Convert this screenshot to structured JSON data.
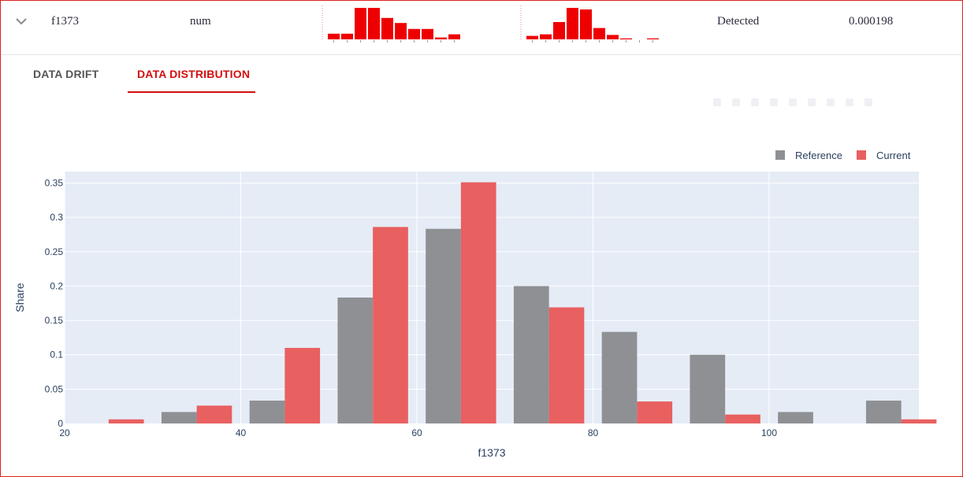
{
  "row": {
    "feature": "f1373",
    "type": "num",
    "status": "Detected",
    "pvalue": "0.000198",
    "ref_spark": [
      0.18,
      0.18,
      1.0,
      1.0,
      0.68,
      0.52,
      0.33,
      0.33,
      0.06,
      0.16
    ],
    "cur_spark": [
      0.11,
      0.16,
      0.55,
      1.0,
      0.95,
      0.36,
      0.14,
      0.03,
      0.0,
      0.03
    ],
    "spark_color": "#ee0000"
  },
  "tabs": [
    {
      "label": "DATA DRIFT",
      "active": false
    },
    {
      "label": "DATA DISTRIBUTION",
      "active": true
    }
  ],
  "chart_data": {
    "type": "bar",
    "xlabel": "f1373",
    "ylabel": "Share",
    "xlim": [
      20,
      117
    ],
    "ylim": [
      0,
      0.35
    ],
    "xticks": [
      20,
      40,
      60,
      80,
      100
    ],
    "yticks": [
      "0",
      "0.05",
      "0.1",
      "0.15",
      "0.2",
      "0.25",
      "0.3",
      "0.35"
    ],
    "legend_position": "top-right",
    "grid": true,
    "series": [
      {
        "name": "Reference",
        "color": "#8e9094",
        "x": [
          25,
          35,
          45,
          55,
          65,
          75,
          85,
          95,
          105,
          115
        ],
        "values": [
          0,
          0.0167,
          0.0333,
          0.1833,
          0.2833,
          0.2,
          0.1333,
          0.1,
          0.0167,
          0.0333
        ]
      },
      {
        "name": "Current",
        "color": "#e86060",
        "x": [
          25,
          35,
          45,
          55,
          65,
          75,
          85,
          95,
          105,
          115
        ],
        "values": [
          0.006,
          0.026,
          0.11,
          0.286,
          0.351,
          0.169,
          0.032,
          0.013,
          0,
          0.006
        ]
      }
    ]
  }
}
